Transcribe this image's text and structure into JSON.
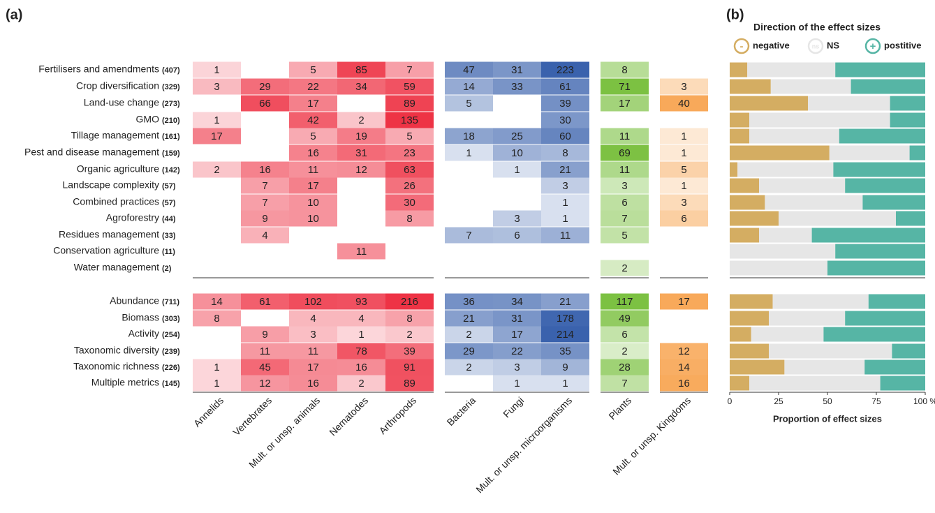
{
  "chart_data": [
    {
      "type": "heatmap",
      "label": "(a)",
      "columns": [
        {
          "name": "Annelids",
          "color": "#ee3345"
        },
        {
          "name": "Vertebrates",
          "color": "#ee3345"
        },
        {
          "name": "Mult. or unsp. animals",
          "color": "#ee3345"
        },
        {
          "name": "Nematodes",
          "color": "#ee3345"
        },
        {
          "name": "Arthropods",
          "color": "#ee3345"
        },
        {
          "name": "Bacteria",
          "color": "#3a62ad"
        },
        {
          "name": "Fungi",
          "color": "#3a62ad"
        },
        {
          "name": "Mult. or unsp. microorganisms",
          "color": "#3a62ad"
        },
        {
          "name": "Plants",
          "color": "#7cc142"
        },
        {
          "name": "Mult. or unsp. Kingdoms",
          "color": "#f8a95a"
        }
      ],
      "sections": [
        {
          "rows": [
            {
              "name": "Fertilisers and amendments",
              "count": "(407)",
              "values": [
                1,
                null,
                5,
                85,
                7,
                47,
                31,
                223,
                8,
                null
              ]
            },
            {
              "name": "Crop diversification",
              "count": "(329)",
              "values": [
                3,
                29,
                22,
                34,
                59,
                14,
                33,
                61,
                71,
                3
              ]
            },
            {
              "name": "Land-use change",
              "count": "(273)",
              "values": [
                null,
                66,
                17,
                null,
                89,
                5,
                null,
                39,
                17,
                40
              ]
            },
            {
              "name": "GMO",
              "count": "(210)",
              "values": [
                1,
                null,
                42,
                2,
                135,
                null,
                null,
                30,
                null,
                null
              ]
            },
            {
              "name": "Tillage management",
              "count": "(161)",
              "values": [
                17,
                null,
                5,
                19,
                5,
                18,
                25,
                60,
                11,
                1
              ]
            },
            {
              "name": "Pest and disease management",
              "count": "(159)",
              "values": [
                null,
                null,
                16,
                31,
                23,
                1,
                10,
                8,
                69,
                1
              ]
            },
            {
              "name": "Organic agriculture",
              "count": "(142)",
              "values": [
                2,
                16,
                11,
                12,
                63,
                null,
                1,
                21,
                11,
                5
              ]
            },
            {
              "name": "Landscape complexity",
              "count": "(57)",
              "values": [
                null,
                7,
                17,
                null,
                26,
                null,
                null,
                3,
                3,
                1
              ]
            },
            {
              "name": "Combined practices",
              "count": "(57)",
              "values": [
                null,
                7,
                10,
                null,
                30,
                null,
                null,
                1,
                6,
                3
              ]
            },
            {
              "name": "Agroforestry",
              "count": "(44)",
              "values": [
                null,
                9,
                10,
                null,
                8,
                null,
                3,
                1,
                7,
                6
              ]
            },
            {
              "name": "Residues management",
              "count": "(33)",
              "values": [
                null,
                4,
                null,
                null,
                null,
                7,
                6,
                11,
                5,
                null
              ]
            },
            {
              "name": "Conservation agriculture",
              "count": "(11)",
              "values": [
                null,
                null,
                null,
                11,
                null,
                null,
                null,
                null,
                null,
                null
              ]
            },
            {
              "name": "Water management",
              "count": "(2)",
              "values": [
                null,
                null,
                null,
                null,
                null,
                null,
                null,
                null,
                2,
                null
              ]
            }
          ]
        },
        {
          "rows": [
            {
              "name": "Abundance",
              "count": "(711)",
              "values": [
                14,
                61,
                102,
                93,
                216,
                36,
                34,
                21,
                117,
                17
              ]
            },
            {
              "name": "Biomass",
              "count": "(303)",
              "values": [
                8,
                null,
                4,
                4,
                8,
                21,
                31,
                178,
                49,
                null
              ]
            },
            {
              "name": "Activity",
              "count": "(254)",
              "values": [
                null,
                9,
                3,
                1,
                2,
                2,
                17,
                214,
                6,
                null
              ]
            },
            {
              "name": "Taxonomic diversity",
              "count": "(239)",
              "values": [
                null,
                11,
                11,
                78,
                39,
                29,
                22,
                35,
                2,
                12
              ]
            },
            {
              "name": "Taxonomic richness",
              "count": "(226)",
              "values": [
                1,
                45,
                17,
                16,
                91,
                2,
                3,
                9,
                28,
                14
              ]
            },
            {
              "name": "Multiple metrics",
              "count": "(145)",
              "values": [
                1,
                12,
                16,
                2,
                89,
                null,
                1,
                1,
                7,
                16
              ]
            }
          ]
        }
      ]
    },
    {
      "type": "stacked_bar_h",
      "label": "(b)",
      "legend_title": "Direction of the effect sizes",
      "x_label": "Proportion of effect sizes",
      "xlim": [
        0,
        100
      ],
      "xticks": [
        0,
        25,
        50,
        75,
        {
          "value": 100,
          "label": "100 %"
        }
      ],
      "series": [
        {
          "name": "negative",
          "symbol": "-",
          "color": "#d4ad62",
          "values": [
            9,
            21,
            40,
            10,
            10,
            51,
            4,
            15,
            18,
            25,
            15,
            0,
            0,
            22,
            20,
            11,
            20,
            28,
            10
          ]
        },
        {
          "name": "NS",
          "symbol": "ns",
          "color": "#e6e6e6",
          "values": [
            45,
            41,
            42,
            72,
            46,
            41,
            49,
            44,
            50,
            60,
            27,
            54,
            50,
            49,
            39,
            37,
            63,
            41,
            67
          ]
        },
        {
          "name": "postitive",
          "symbol": "+",
          "color": "#56b5a5",
          "values": [
            46,
            38,
            18,
            18,
            44,
            8,
            47,
            41,
            32,
            15,
            58,
            46,
            50,
            29,
            41,
            52,
            17,
            31,
            23
          ]
        }
      ]
    }
  ]
}
